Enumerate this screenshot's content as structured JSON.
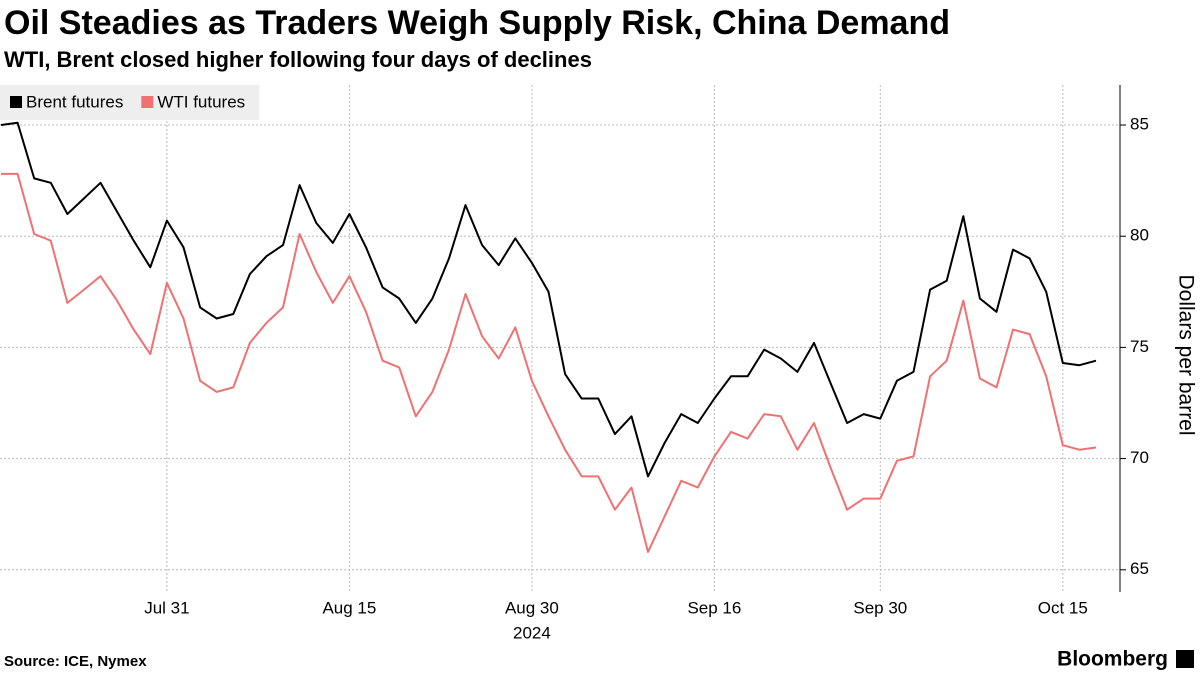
{
  "chart_data": {
    "type": "line",
    "title": "Oil Steadies as Traders Weigh Supply Risk, China Demand",
    "subtitle": "WTI, Brent closed higher following four days of declines",
    "y_axis_label": "Dollars per barrel",
    "source": "Source: ICE, Nymex",
    "brand": "Bloomberg",
    "year_label": "2024",
    "categories": [
      null,
      null,
      null,
      null,
      null,
      null,
      null,
      null,
      null,
      null,
      "Jul 31",
      null,
      null,
      null,
      null,
      null,
      null,
      null,
      null,
      null,
      null,
      "Aug 15",
      null,
      null,
      null,
      null,
      null,
      null,
      null,
      null,
      null,
      null,
      "Aug 30",
      null,
      null,
      null,
      null,
      null,
      null,
      null,
      null,
      null,
      null,
      "Sep 16",
      null,
      null,
      null,
      null,
      null,
      null,
      null,
      null,
      null,
      "Sep 30",
      null,
      null,
      null,
      null,
      null,
      null,
      null,
      null,
      null,
      null,
      "Oct 15",
      null,
      null
    ],
    "series": [
      {
        "name": "Brent futures",
        "color": "#000000",
        "values": [
          85.0,
          85.1,
          82.6,
          82.4,
          81.0,
          81.7,
          82.4,
          81.1,
          79.8,
          78.6,
          80.7,
          79.5,
          76.8,
          76.3,
          76.5,
          78.3,
          79.1,
          79.6,
          82.3,
          80.6,
          79.7,
          81.0,
          79.5,
          77.7,
          77.2,
          76.1,
          77.2,
          79.0,
          81.4,
          79.6,
          78.7,
          79.9,
          78.8,
          77.5,
          73.8,
          72.7,
          72.7,
          71.1,
          71.9,
          69.2,
          70.7,
          72.0,
          71.6,
          72.7,
          73.7,
          73.7,
          74.9,
          74.5,
          73.9,
          75.2,
          73.4,
          71.6,
          72.0,
          71.8,
          73.5,
          73.9,
          77.6,
          78.0,
          80.9,
          77.2,
          76.6,
          79.4,
          79.0,
          77.5,
          74.3,
          74.2,
          74.4
        ]
      },
      {
        "name": "WTI futures",
        "color": "#f07171",
        "values": [
          82.8,
          82.8,
          80.1,
          79.8,
          77.0,
          77.6,
          78.2,
          77.1,
          75.8,
          74.7,
          77.9,
          76.3,
          73.5,
          73.0,
          73.2,
          75.2,
          76.1,
          76.8,
          80.1,
          78.4,
          77.0,
          78.2,
          76.6,
          74.4,
          74.1,
          71.9,
          73.0,
          74.9,
          77.4,
          75.5,
          74.5,
          75.9,
          73.5,
          71.9,
          70.4,
          69.2,
          69.2,
          67.7,
          68.7,
          65.8,
          67.4,
          69.0,
          68.7,
          70.1,
          71.2,
          70.9,
          72.0,
          71.9,
          70.4,
          71.6,
          69.6,
          67.7,
          68.2,
          68.2,
          69.9,
          70.1,
          73.7,
          74.4,
          77.1,
          73.6,
          73.2,
          75.8,
          75.6,
          73.7,
          70.6,
          70.4,
          70.5
        ]
      }
    ],
    "ylim": [
      64,
      86.8
    ],
    "yticks": [
      65,
      70,
      75,
      80,
      85
    ],
    "grid": true,
    "legend": "top-left"
  }
}
